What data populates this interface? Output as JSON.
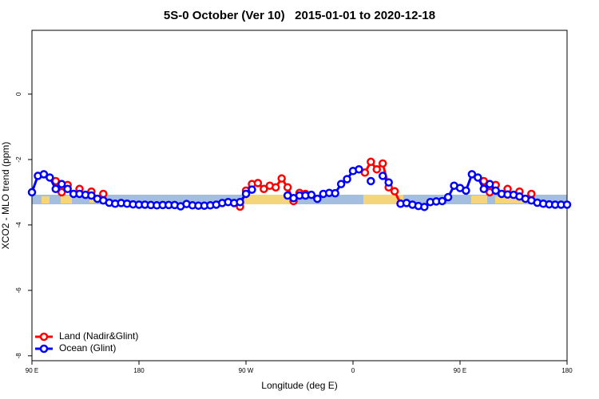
{
  "chart_data": {
    "type": "line",
    "title": "5S-0 October (Ver 10)   2015-01-01 to 2020-12-18",
    "x_label": "Longitude (deg E)",
    "y_label": "XCO2 - MLO trend (ppm)",
    "x": [
      90,
      95,
      100,
      105,
      110,
      115,
      120,
      125,
      130,
      135,
      140,
      145,
      150,
      155,
      160,
      165,
      170,
      175,
      180,
      185,
      190,
      195,
      200,
      205,
      210,
      215,
      220,
      225,
      230,
      235,
      240,
      245,
      250,
      255,
      260,
      265,
      270,
      275,
      280,
      285,
      290,
      295,
      300,
      305,
      310,
      315,
      320,
      325,
      330,
      335,
      340,
      345,
      350,
      355,
      360,
      365,
      370,
      375,
      380,
      385,
      390,
      395,
      400,
      405,
      410,
      415,
      420,
      425,
      430,
      435,
      440,
      445,
      450,
      455,
      460,
      465,
      470,
      475,
      480,
      485,
      490,
      495,
      500,
      505,
      510,
      515,
      520,
      525,
      530,
      535,
      540
    ],
    "series": [
      {
        "name": "Land (Nadir&Glint)",
        "color": "#ff0000",
        "values": [
          null,
          null,
          null,
          null,
          -2.66,
          -3.0,
          -2.78,
          null,
          -2.9,
          null,
          -2.98,
          null,
          -3.05,
          null,
          null,
          null,
          null,
          null,
          null,
          null,
          null,
          null,
          null,
          null,
          null,
          null,
          null,
          null,
          null,
          null,
          null,
          null,
          null,
          null,
          null,
          -3.44,
          -2.95,
          -2.75,
          -2.72,
          -2.9,
          -2.8,
          -2.85,
          -2.58,
          -2.85,
          -3.27,
          -3.02,
          -3.05,
          null,
          null,
          null,
          null,
          null,
          null,
          null,
          null,
          null,
          -2.4,
          -2.07,
          -2.3,
          -2.12,
          -2.85,
          -2.97,
          -3.35,
          null,
          null,
          null,
          null,
          null,
          null,
          null,
          null,
          null,
          null,
          null,
          null,
          null,
          -2.66,
          -3.0,
          -2.78,
          null,
          -2.9,
          null,
          -2.98,
          null,
          -3.05,
          null,
          null,
          null,
          null,
          null,
          null
        ]
      },
      {
        "name": "Ocean (Glint)",
        "color": "#0000ff",
        "values": [
          -3.0,
          -2.5,
          -2.45,
          -2.55,
          -2.9,
          -2.75,
          -2.9,
          -3.05,
          -3.05,
          -3.08,
          -3.1,
          -3.2,
          -3.25,
          -3.32,
          -3.35,
          -3.33,
          -3.35,
          -3.37,
          -3.38,
          -3.38,
          -3.39,
          -3.4,
          -3.39,
          -3.39,
          -3.39,
          -3.43,
          -3.36,
          -3.4,
          -3.41,
          -3.41,
          -3.4,
          -3.38,
          -3.33,
          -3.3,
          -3.33,
          -3.3,
          -3.05,
          -2.92,
          null,
          null,
          null,
          null,
          null,
          -3.1,
          -3.18,
          -3.1,
          -3.1,
          -3.08,
          -3.2,
          -3.05,
          -3.02,
          -3.03,
          -2.75,
          -2.6,
          -2.35,
          -2.3,
          null,
          -2.66,
          null,
          -2.5,
          -2.7,
          null,
          -3.35,
          -3.33,
          -3.38,
          -3.42,
          -3.45,
          -3.3,
          -3.28,
          -3.27,
          -3.15,
          -2.8,
          -2.87,
          -2.95,
          -2.45,
          -2.55,
          -2.9,
          -2.75,
          -2.95,
          -3.05,
          -3.07,
          -3.08,
          -3.13,
          -3.2,
          -3.25,
          -3.32,
          -3.35,
          -3.37,
          -3.38,
          -3.38,
          -3.38
        ]
      }
    ],
    "xlim": [
      90,
      540
    ],
    "xticks": [
      {
        "value": 90,
        "label": "90 E"
      },
      180,
      {
        "value": 270,
        "label": "90 W"
      },
      {
        "value": 360,
        "label": "0"
      },
      {
        "value": 450,
        "label": "90 E"
      },
      {
        "value": 540,
        "label": "180"
      }
    ],
    "ylim": [
      -8.15,
      1.95
    ],
    "yticks": [
      0,
      -2,
      -4,
      -6,
      -8
    ],
    "legend": "bottom-left"
  }
}
